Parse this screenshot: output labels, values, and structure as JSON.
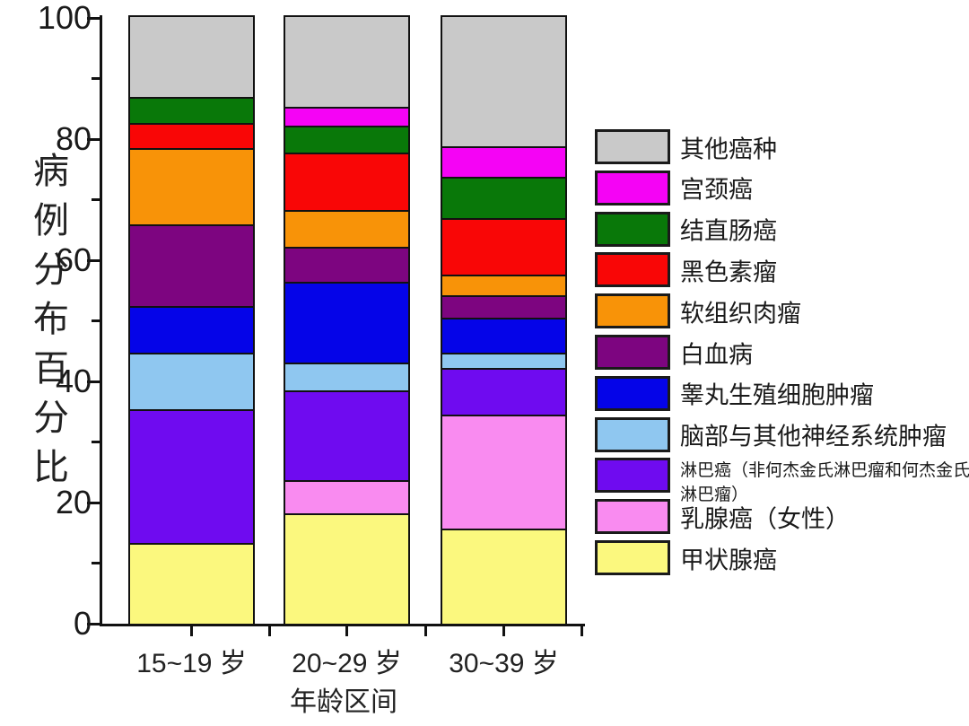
{
  "chart_data": {
    "type": "bar",
    "stacked": true,
    "title": "",
    "xlabel": "年龄区间",
    "ylabel": "病例分布百分比",
    "ylim": [
      0,
      100
    ],
    "yticks": [
      0,
      20,
      40,
      60,
      80,
      100
    ],
    "yticks_minor": [
      10,
      30,
      50,
      70,
      90
    ],
    "grid": false,
    "legend_position": "right",
    "legend_order": "top-to-bottom is reverse of stacking order",
    "categories": [
      "15~19 岁",
      "20~29 岁",
      "30~39 岁"
    ],
    "series": [
      {
        "name": "甲状腺癌",
        "color": "#FBF87E",
        "values": [
          13.0,
          17.9,
          15.4
        ]
      },
      {
        "name": "乳腺癌（女性）",
        "color": "#F98BF0",
        "values": [
          0,
          5.5,
          18.7
        ]
      },
      {
        "name": "淋巴癌（非何杰金氏淋巴瘤和何杰金氏淋巴瘤）",
        "color": "#6F0BF0",
        "values": [
          22.0,
          14.7,
          7.7
        ]
      },
      {
        "name": "脑部与其他神经系统肿瘤",
        "color": "#8FC7F0",
        "values": [
          9.4,
          4.6,
          2.6
        ]
      },
      {
        "name": "睾丸生殖细胞肿瘤",
        "color": "#0504E8",
        "values": [
          7.7,
          13.3,
          5.8
        ]
      },
      {
        "name": "白血病",
        "color": "#7D0580",
        "values": [
          13.4,
          5.8,
          3.6
        ]
      },
      {
        "name": "软组织肉瘤",
        "color": "#F89308",
        "values": [
          12.6,
          6.1,
          3.5
        ]
      },
      {
        "name": "黑色素瘤",
        "color": "#F90606",
        "values": [
          4.1,
          9.4,
          9.2
        ]
      },
      {
        "name": "结直肠癌",
        "color": "#097809",
        "values": [
          4.3,
          4.5,
          6.8
        ]
      },
      {
        "name": "宫颈癌",
        "color": "#F503F5",
        "values": [
          0,
          3.1,
          5.1
        ]
      },
      {
        "name": "其他癌种",
        "color": "#C9C9C9",
        "values": [
          13.5,
          15.1,
          21.6
        ]
      }
    ],
    "axis_color": "#111111",
    "segment_border_color": "#111111"
  }
}
